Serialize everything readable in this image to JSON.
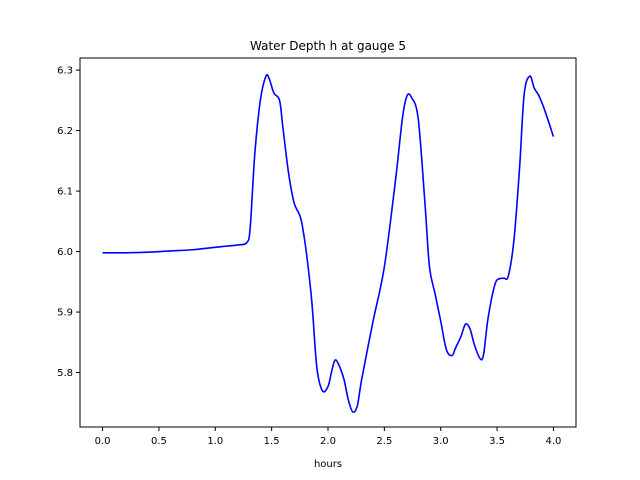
{
  "chart_data": {
    "type": "line",
    "title": "Water Depth h at gauge 5",
    "xlabel": "hours",
    "ylabel": "",
    "xlim": [
      -0.2,
      4.2
    ],
    "ylim": [
      5.71,
      6.32
    ],
    "xticks": [
      0.0,
      0.5,
      1.0,
      1.5,
      2.0,
      2.5,
      3.0,
      3.5,
      4.0
    ],
    "xtick_labels": [
      "0.0",
      "0.5",
      "1.0",
      "1.5",
      "2.0",
      "2.5",
      "3.0",
      "3.5",
      "4.0"
    ],
    "yticks": [
      5.8,
      5.9,
      6.0,
      6.1,
      6.2,
      6.3
    ],
    "ytick_labels": [
      "5.8",
      "5.9",
      "6.0",
      "6.1",
      "6.2",
      "6.3"
    ],
    "grid": false,
    "series": [
      {
        "color": "#0000ff",
        "x": [
          0.0,
          0.2,
          0.4,
          0.6,
          0.8,
          0.9,
          1.0,
          1.1,
          1.2,
          1.28,
          1.31,
          1.35,
          1.4,
          1.45,
          1.48,
          1.52,
          1.57,
          1.6,
          1.65,
          1.7,
          1.77,
          1.85,
          1.9,
          1.95,
          2.0,
          2.03,
          2.06,
          2.09,
          2.14,
          2.18,
          2.22,
          2.26,
          2.3,
          2.4,
          2.5,
          2.6,
          2.66,
          2.7,
          2.74,
          2.8,
          2.86,
          2.9,
          2.95,
          3.0,
          3.05,
          3.1,
          3.13,
          3.18,
          3.22,
          3.26,
          3.3,
          3.35,
          3.38,
          3.42,
          3.48,
          3.52,
          3.56,
          3.6,
          3.65,
          3.7,
          3.74,
          3.79,
          3.83,
          3.87,
          3.92,
          4.0
        ],
        "y": [
          5.998,
          5.998,
          5.999,
          6.001,
          6.003,
          6.005,
          6.007,
          6.009,
          6.011,
          6.015,
          6.04,
          6.16,
          6.25,
          6.29,
          6.285,
          6.262,
          6.25,
          6.205,
          6.13,
          6.08,
          6.045,
          5.93,
          5.81,
          5.77,
          5.777,
          5.8,
          5.82,
          5.815,
          5.79,
          5.755,
          5.735,
          5.745,
          5.79,
          5.885,
          5.975,
          6.12,
          6.22,
          6.257,
          6.255,
          6.22,
          6.08,
          5.975,
          5.93,
          5.885,
          5.838,
          5.828,
          5.84,
          5.86,
          5.88,
          5.872,
          5.845,
          5.823,
          5.83,
          5.89,
          5.945,
          5.955,
          5.956,
          5.96,
          6.02,
          6.14,
          6.26,
          6.29,
          6.27,
          6.258,
          6.235,
          6.19
        ]
      }
    ]
  }
}
